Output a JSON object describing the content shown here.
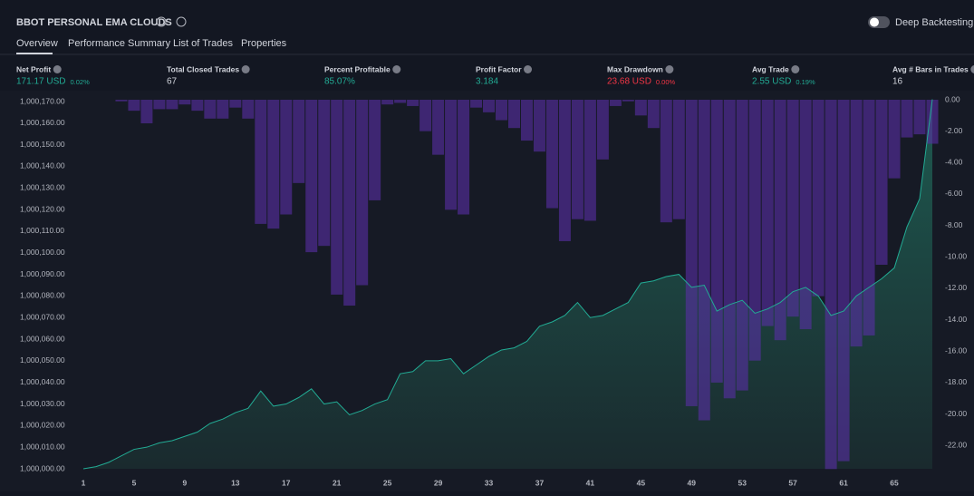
{
  "header": {
    "title": "BBOT PERSONAL EMA CLOUDS",
    "toggle_label": "Deep Backtesting"
  },
  "tabs": [
    "Overview",
    "Performance Summary",
    "List of Trades",
    "Properties"
  ],
  "stats": [
    {
      "label": "Net Profit",
      "value": "171.17 USD",
      "sub": "0.02%",
      "color": "#22ab94"
    },
    {
      "label": "Total Closed Trades",
      "value": "67",
      "color": "#d1d4dc"
    },
    {
      "label": "Percent Profitable",
      "value": "85.07%",
      "color": "#22ab94"
    },
    {
      "label": "Profit Factor",
      "value": "3.184",
      "color": "#22ab94"
    },
    {
      "label": "Max Drawdown",
      "value": "23.68 USD",
      "sub": "0.00%",
      "color": "#f23645"
    },
    {
      "label": "Avg Trade",
      "value": "2.55 USD",
      "sub": "0.19%",
      "color": "#22ab94"
    },
    {
      "label": "Avg # Bars in Trades",
      "value": "16",
      "color": "#d1d4dc"
    }
  ],
  "chart_data": {
    "type": "equity",
    "x": [
      1,
      2,
      3,
      4,
      5,
      6,
      7,
      8,
      9,
      10,
      11,
      12,
      13,
      14,
      15,
      16,
      17,
      18,
      19,
      20,
      21,
      22,
      23,
      24,
      25,
      26,
      27,
      28,
      29,
      30,
      31,
      32,
      33,
      34,
      35,
      36,
      37,
      38,
      39,
      40,
      41,
      42,
      43,
      44,
      45,
      46,
      47,
      48,
      49,
      50,
      51,
      52,
      53,
      54,
      55,
      56,
      57,
      58,
      59,
      60,
      61,
      62,
      63,
      64,
      65,
      66,
      67,
      68
    ],
    "xlim": [
      1,
      68
    ],
    "xticks": [
      1,
      5,
      9,
      13,
      17,
      21,
      25,
      29,
      33,
      37,
      41,
      45,
      49,
      53,
      57,
      61,
      65
    ],
    "ylim": [
      1000000,
      1000170
    ],
    "yticks": [
      {
        "value": 1000000,
        "label": "1,000,000.00"
      },
      {
        "value": 1000010,
        "label": "1,000,010.00"
      },
      {
        "value": 1000020,
        "label": "1,000,020.00"
      },
      {
        "value": 1000030,
        "label": "1,000,030.00"
      },
      {
        "value": 1000040,
        "label": "1,000,040.00"
      },
      {
        "value": 1000050,
        "label": "1,000,050.00"
      },
      {
        "value": 1000060,
        "label": "1,000,060.00"
      },
      {
        "value": 1000070,
        "label": "1,000,070.00"
      },
      {
        "value": 1000080,
        "label": "1,000,080.00"
      },
      {
        "value": 1000090,
        "label": "1,000,090.00"
      },
      {
        "value": 1000100,
        "label": "1,000,100.00"
      },
      {
        "value": 1000110,
        "label": "1,000,110.00"
      },
      {
        "value": 1000120,
        "label": "1,000,120.00"
      },
      {
        "value": 1000130,
        "label": "1,000,130.00"
      },
      {
        "value": 1000140,
        "label": "1,000,140.00"
      },
      {
        "value": 1000150,
        "label": "1,000,150.00"
      },
      {
        "value": 1000160,
        "label": "1,000,160.00"
      },
      {
        "value": 1000170,
        "label": "1,000,170.00"
      }
    ],
    "y2lim": [
      -23.6,
      0
    ],
    "y2ticks": [
      {
        "value": 0,
        "label": "0.00"
      },
      {
        "value": -2,
        "label": "-2.00"
      },
      {
        "value": -4,
        "label": "-4.00"
      },
      {
        "value": -6,
        "label": "-6.00"
      },
      {
        "value": -8,
        "label": "-8.00"
      },
      {
        "value": -10,
        "label": "-10.00"
      },
      {
        "value": -12,
        "label": "-12.00"
      },
      {
        "value": -14,
        "label": "-14.00"
      },
      {
        "value": -16,
        "label": "-16.00"
      },
      {
        "value": -18,
        "label": "-18.00"
      },
      {
        "value": -20,
        "label": "-20.00"
      },
      {
        "value": -22,
        "label": "-22.00"
      }
    ],
    "series": [
      {
        "color": "#22ab94",
        "values": [
          1000000,
          1000001,
          1000003,
          1000006,
          1000009,
          1000010,
          1000012,
          1000013,
          1000015,
          1000017,
          1000021,
          1000023,
          1000026,
          1000028,
          1000036,
          1000029,
          1000030,
          1000033,
          1000037,
          1000030,
          1000031,
          1000025,
          1000027,
          1000030,
          1000032,
          1000044,
          1000045,
          1000050,
          1000050,
          1000051,
          1000044,
          1000048,
          1000052,
          1000055,
          1000056,
          1000059,
          1000066,
          1000068,
          1000071,
          1000077,
          1000070,
          1000071,
          1000074,
          1000077,
          1000086,
          1000087,
          1000089,
          1000090,
          1000084,
          1000085,
          1000073,
          1000076,
          1000078,
          1000072,
          1000074,
          1000077,
          1000082,
          1000084,
          1000080,
          1000071,
          1000073,
          1000080,
          1000084,
          1000088,
          1000093,
          1000112,
          1000125,
          1000171
        ]
      },
      {
        "color": "#5a2ea6",
        "axis": "y2",
        "values": [
          0,
          0,
          0,
          -0.1,
          -0.7,
          -1.5,
          -0.6,
          -0.6,
          -0.3,
          -0.7,
          -1.2,
          -1.2,
          -0.5,
          -1.2,
          -7.9,
          -8.2,
          -7.3,
          -5.3,
          -9.7,
          -9.3,
          -12.4,
          -13.1,
          -11.8,
          -6.4,
          -0.3,
          -0.2,
          -0.4,
          -2,
          -3.5,
          -7,
          -7.3,
          -0.5,
          -0.8,
          -1.3,
          -1.8,
          -2.6,
          -3.3,
          -6.9,
          -9,
          -7.6,
          -7.7,
          -3.8,
          -0.4,
          -0.1,
          -1,
          -1.8,
          -7.8,
          -7.6,
          -19.5,
          -20.4,
          -18,
          -19,
          -18.5,
          -16.6,
          -14.4,
          -15.3,
          -13.8,
          -14.6,
          -12.5,
          -23.5,
          -23,
          -15.7,
          -15,
          -10.5,
          -5,
          -2.4,
          -2.2,
          -2.8
        ]
      }
    ]
  }
}
